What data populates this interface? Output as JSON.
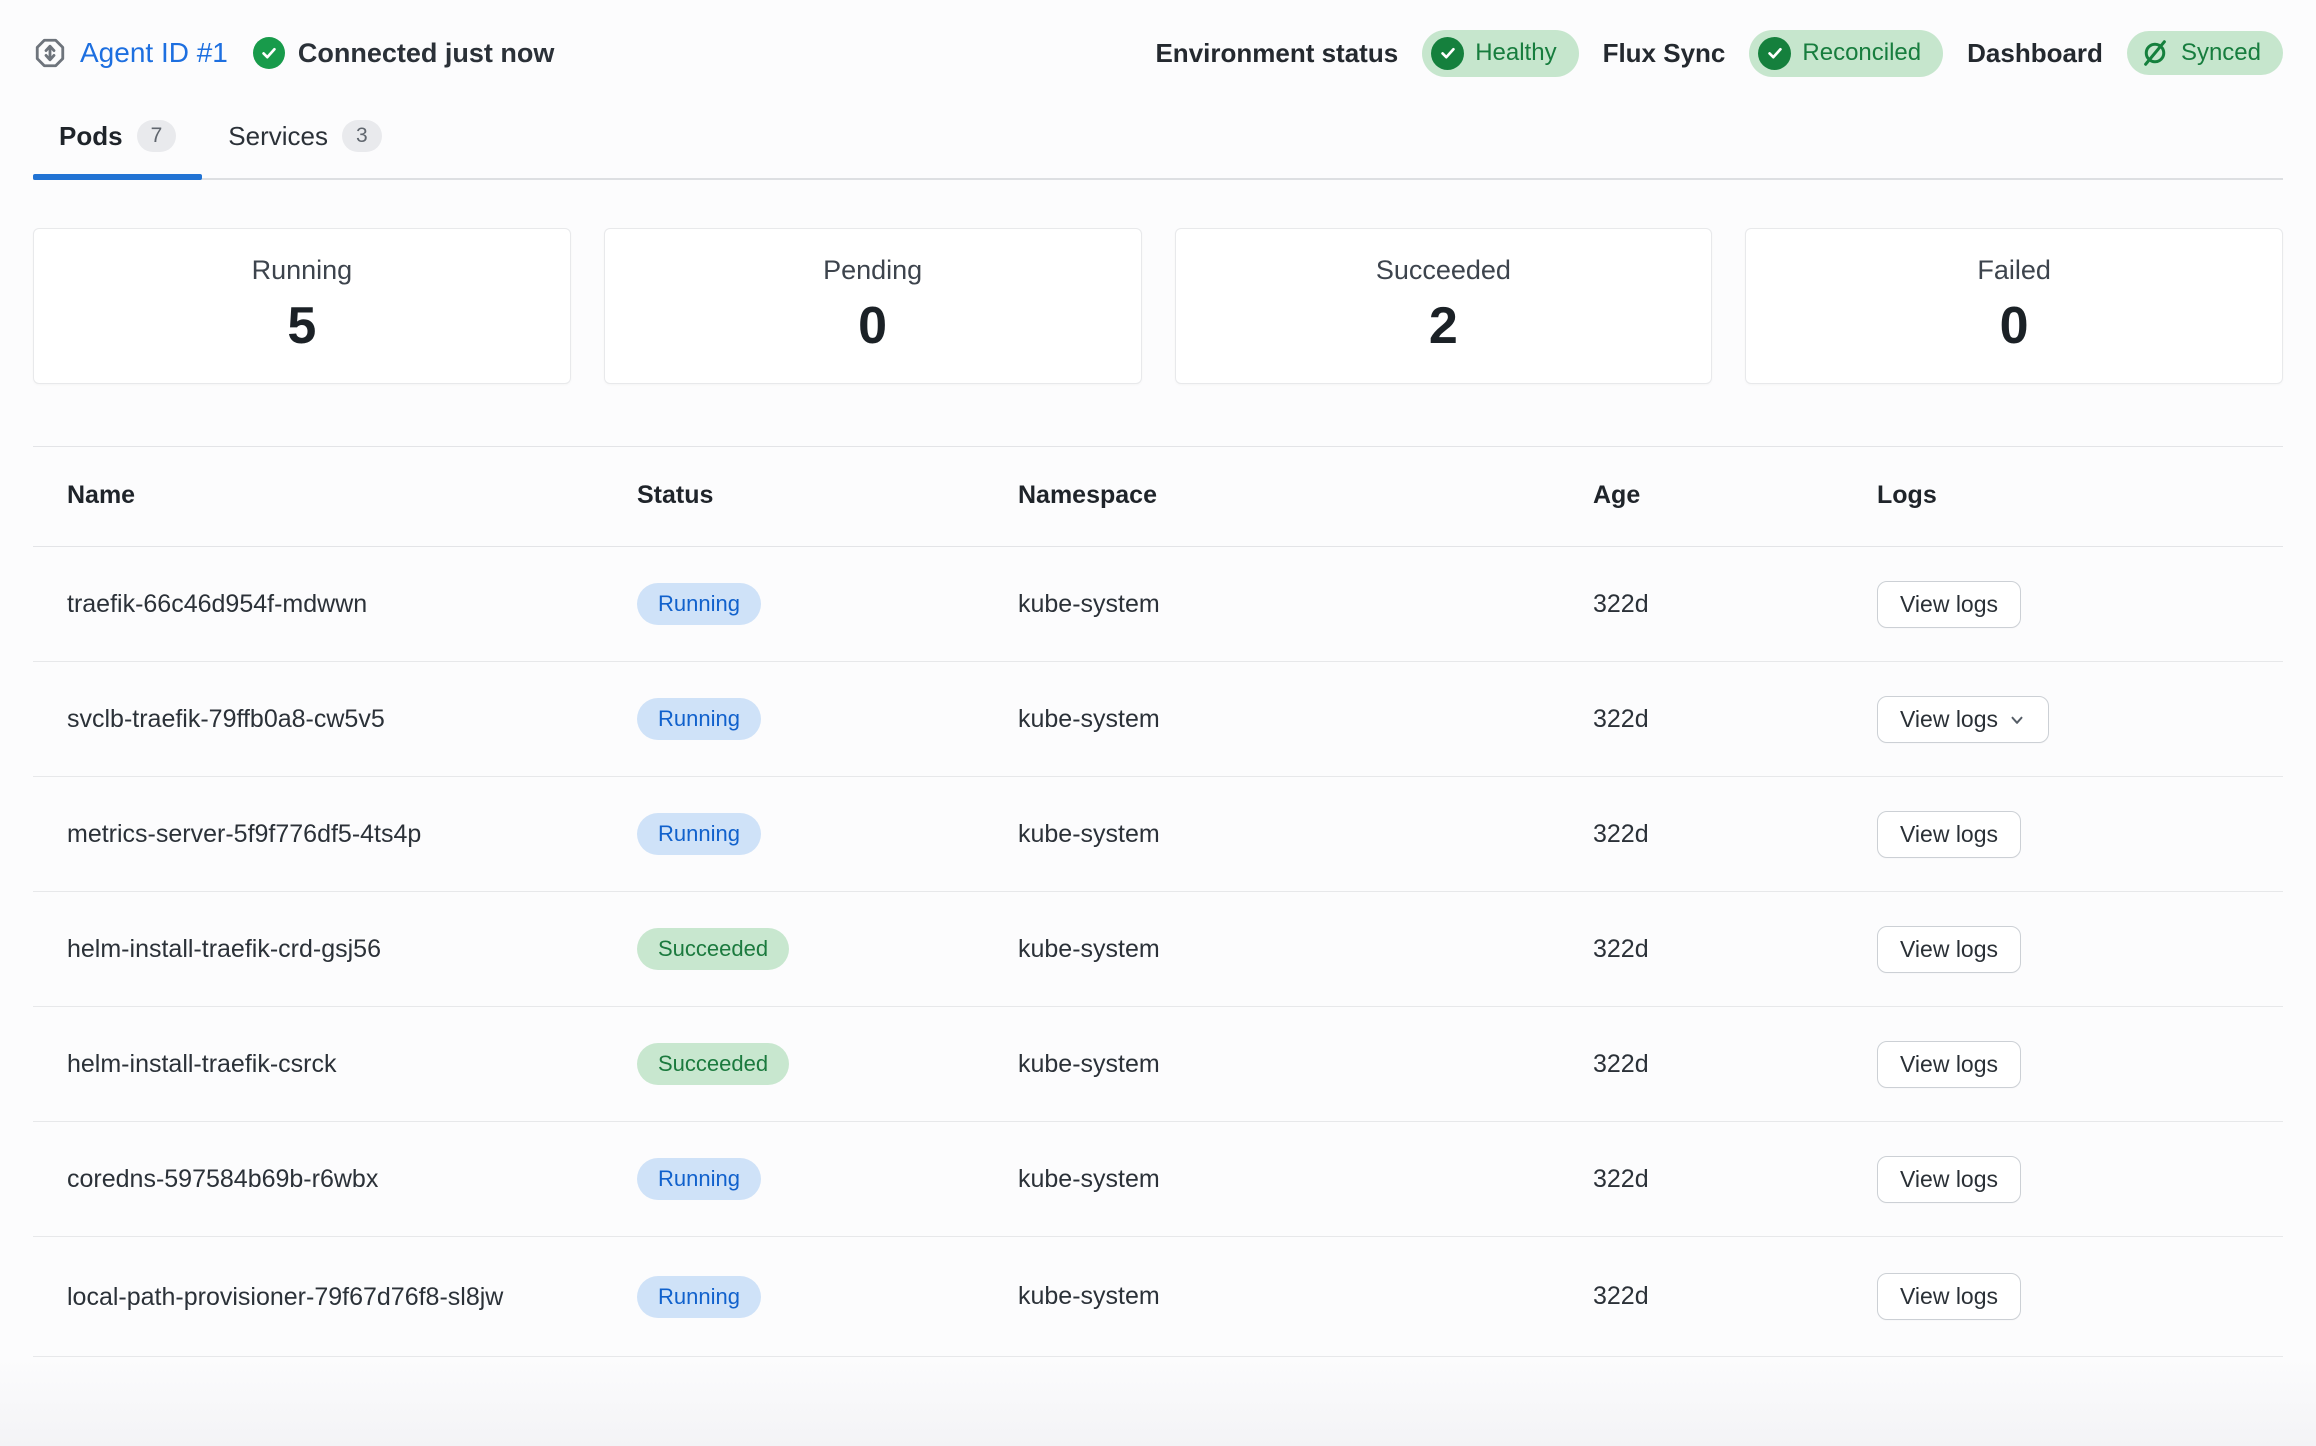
{
  "topbar": {
    "agent_link": "Agent ID #1",
    "connection_status": "Connected just now",
    "env_status": {
      "label": "Environment status",
      "badge": "Healthy"
    },
    "flux_sync": {
      "label": "Flux Sync",
      "badge": "Reconciled"
    },
    "dashboard": {
      "label": "Dashboard",
      "badge": "Synced"
    }
  },
  "tabs": [
    {
      "label": "Pods",
      "count": "7"
    },
    {
      "label": "Services",
      "count": "3"
    }
  ],
  "stats": [
    {
      "label": "Running",
      "value": "5"
    },
    {
      "label": "Pending",
      "value": "0"
    },
    {
      "label": "Succeeded",
      "value": "2"
    },
    {
      "label": "Failed",
      "value": "0"
    }
  ],
  "table": {
    "columns": [
      "Name",
      "Status",
      "Namespace",
      "Age",
      "Logs"
    ],
    "rows": [
      {
        "name": "traefik-66c46d954f-mdwwn",
        "status": "Running",
        "namespace": "kube-system",
        "age": "322d",
        "logs_label": "View logs",
        "has_dropdown": false
      },
      {
        "name": "svclb-traefik-79ffb0a8-cw5v5",
        "status": "Running",
        "namespace": "kube-system",
        "age": "322d",
        "logs_label": "View logs",
        "has_dropdown": true
      },
      {
        "name": "metrics-server-5f9f776df5-4ts4p",
        "status": "Running",
        "namespace": "kube-system",
        "age": "322d",
        "logs_label": "View logs",
        "has_dropdown": false
      },
      {
        "name": "helm-install-traefik-crd-gsj56",
        "status": "Succeeded",
        "namespace": "kube-system",
        "age": "322d",
        "logs_label": "View logs",
        "has_dropdown": false
      },
      {
        "name": "helm-install-traefik-csrck",
        "status": "Succeeded",
        "namespace": "kube-system",
        "age": "322d",
        "logs_label": "View logs",
        "has_dropdown": false
      },
      {
        "name": "coredns-597584b69b-r6wbx",
        "status": "Running",
        "namespace": "kube-system",
        "age": "322d",
        "logs_label": "View logs",
        "has_dropdown": false
      },
      {
        "name": "local-path-provisioner-79f67d76f8-sl8jw",
        "status": "Running",
        "namespace": "kube-system",
        "age": "322d",
        "logs_label": "View logs",
        "has_dropdown": false
      }
    ]
  },
  "colors": {
    "accent_blue": "#2173d4",
    "link_blue": "#1d6fe0",
    "running_badge_bg": "#cfe2f8",
    "running_badge_text": "#1161cc",
    "succeeded_badge_bg": "#c8e7cf",
    "succeeded_badge_text": "#1b7a3e",
    "green_badge_bg": "#c6e6cd",
    "green_badge_text": "#177d3e",
    "connected_check_green": "#189b4b",
    "badge_check_green": "#15803d"
  }
}
